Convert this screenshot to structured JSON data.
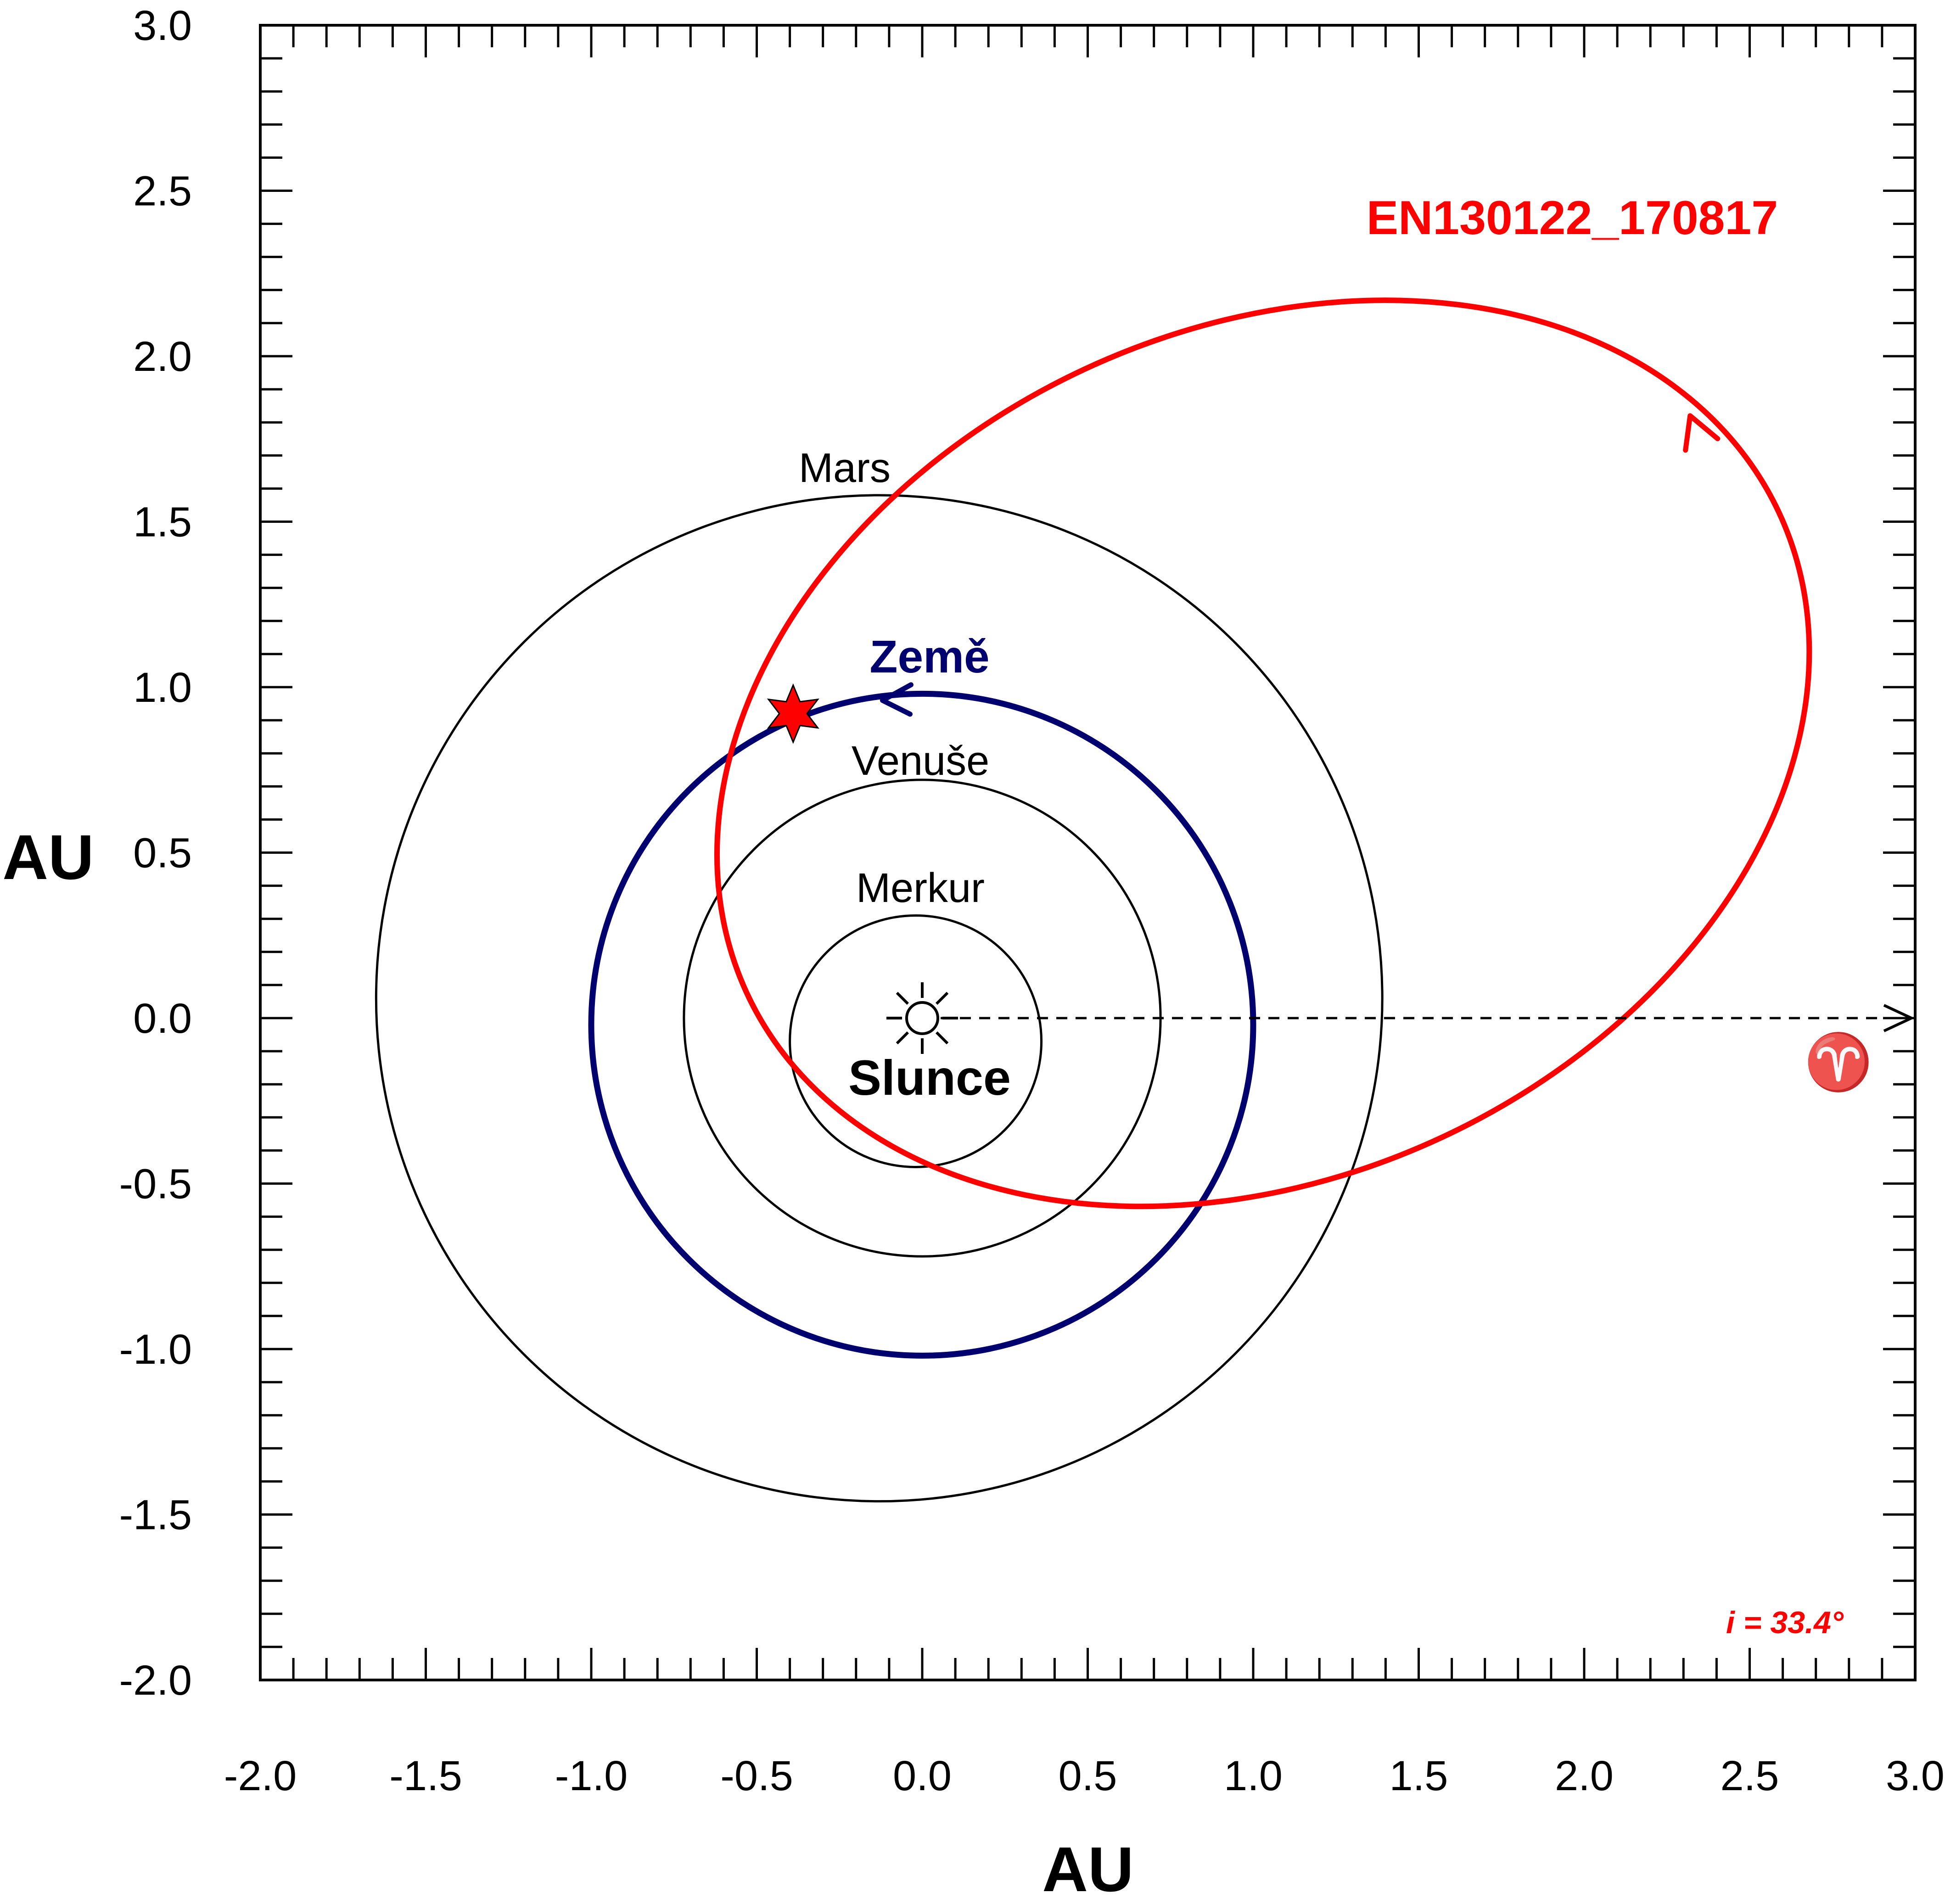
{
  "colors": {
    "meteoroid": "#ff0000",
    "earth": "#00006e",
    "planet": "#000000",
    "background": "#ffffff"
  },
  "axes": {
    "x_title": "AU",
    "y_title": "AU",
    "xlim": [
      -2.0,
      3.0
    ],
    "ylim": [
      -2.0,
      3.0
    ],
    "major_step": 0.5,
    "minor_step": 0.1,
    "x_ticks": [
      "-2.0",
      "-1.5",
      "-1.0",
      "-0.5",
      "0.0",
      "0.5",
      "1.0",
      "1.5",
      "2.0",
      "2.5",
      "3.0"
    ],
    "y_ticks": [
      "3.0",
      "2.5",
      "2.0",
      "1.5",
      "1.0",
      "0.5",
      "0.0",
      "-0.5",
      "-1.0",
      "-1.5",
      "-2.0"
    ]
  },
  "chart_data": {
    "type": "diagram",
    "xlabel": "AU",
    "ylabel": "AU",
    "xlim": [
      -2.0,
      3.0
    ],
    "ylim": [
      -2.0,
      3.0
    ],
    "sun": {
      "label": "Slunce",
      "x": 0.0,
      "y": 0.0
    },
    "planet_orbits": [
      {
        "name": "Merkur",
        "center": [
          -0.02,
          -0.07
        ],
        "rx": 0.38,
        "ry": 0.38
      },
      {
        "name": "Venuše",
        "center": [
          0.0,
          0.0
        ],
        "rx": 0.72,
        "ry": 0.72
      },
      {
        "name": "Země",
        "center": [
          0.0,
          -0.02
        ],
        "rx": 1.0,
        "ry": 1.0
      },
      {
        "name": "Mars",
        "center": [
          -0.13,
          0.06
        ],
        "rx": 1.52,
        "ry": 1.52
      }
    ],
    "meteoroid_orbit": {
      "name": "EN130122_170817",
      "center": [
        1.03,
        0.8
      ],
      "rx": 1.72,
      "ry": 1.28,
      "tilt_deg": 25,
      "inclination_label": "i = 33.4°"
    },
    "impact_point": {
      "x": -0.39,
      "y": 0.92
    },
    "vernal_equinox": {
      "symbol": "♈",
      "from_x": 0.0,
      "to_x": 3.0,
      "y": 0.0
    }
  }
}
